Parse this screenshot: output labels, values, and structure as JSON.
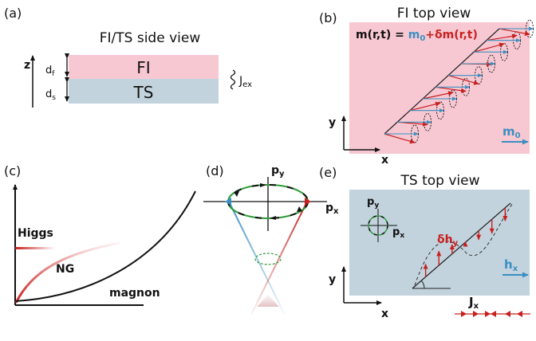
{
  "panels": {
    "a": {
      "letter": "(a)",
      "title": "FI/TS side view",
      "axis_z": "z",
      "d_f": "d",
      "d_f_sub": "f",
      "d_s": "d",
      "d_s_sub": "s",
      "fi_label": "FI",
      "ts_label": "TS",
      "jex": "J",
      "jex_sub": "ex"
    },
    "b": {
      "letter": "(b)",
      "title": "FI top view",
      "formula_lhs": "m(r,t) = ",
      "formula_m0": "m",
      "formula_m0_sub": "0",
      "formula_plus": "+",
      "formula_dm": "δm(r,t)",
      "axis_y": "y",
      "axis_x": "x",
      "m0_label": "m",
      "m0_sub": "0"
    },
    "c": {
      "letter": "(c)",
      "higgs": "Higgs",
      "ng": "NG",
      "magnon": "magnon"
    },
    "d": {
      "letter": "(d)",
      "py": "p",
      "py_sub": "y",
      "px": "p",
      "px_sub": "x"
    },
    "e": {
      "letter": "(e)",
      "title": "TS top view",
      "py": "p",
      "py_sub": "y",
      "px": "p",
      "px_sub": "x",
      "dhy": "δh",
      "dhy_sub": "y",
      "hx": "h",
      "hx_sub": "x",
      "jx": "J",
      "jx_sub": "x",
      "axis_y": "y",
      "axis_x": "x"
    }
  },
  "colors": {
    "fi_pink": "#f7c8d2",
    "ts_blue": "#c2d3dd",
    "red": "#c8201f",
    "blue": "#3a8fc2",
    "green": "#2e9b3a"
  }
}
